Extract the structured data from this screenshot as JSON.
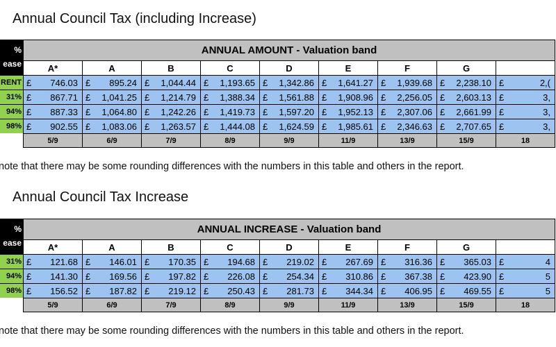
{
  "tables": [
    {
      "title": "Annual Council Tax (including Increase)",
      "header_left": [
        "%",
        "ease"
      ],
      "band_header": "ANNUAL AMOUNT - Valuation band",
      "bands": [
        "A*",
        "A",
        "B",
        "C",
        "D",
        "E",
        "F",
        "G"
      ],
      "currency": "£",
      "rows": [
        {
          "label": "RENT",
          "values": [
            "746.03",
            "895.24",
            "1,044.44",
            "1,193.65",
            "1,342.86",
            "1,641.27",
            "1,939.68",
            "2,238.10",
            "2,("
          ]
        },
        {
          "label": "31%",
          "values": [
            "867.71",
            "1,041.25",
            "1,214.79",
            "1,388.34",
            "1,561.88",
            "1,908.96",
            "2,256.05",
            "2,603.13",
            "3,"
          ]
        },
        {
          "label": "94%",
          "values": [
            "887.33",
            "1,064.80",
            "1,242.26",
            "1,419.73",
            "1,597.20",
            "1,952.13",
            "2,307.06",
            "2,661.99",
            "3,"
          ]
        },
        {
          "label": "98%",
          "values": [
            "902.55",
            "1,083.06",
            "1,263.57",
            "1,444.08",
            "1,624.59",
            "1,985.61",
            "2,346.63",
            "2,707.65",
            "3,"
          ]
        }
      ],
      "ratios": [
        "5/9",
        "6/9",
        "7/9",
        "8/9",
        "9/9",
        "11/9",
        "13/9",
        "15/9",
        "18"
      ],
      "note": "note that there may be some rounding differences with the numbers in this table and others in the report."
    },
    {
      "title": "Annual Council Tax Increase",
      "header_left": [
        "%",
        "ease"
      ],
      "band_header": "ANNUAL INCREASE - Valuation band",
      "bands": [
        "A*",
        "A",
        "B",
        "C",
        "D",
        "E",
        "F",
        "G"
      ],
      "currency": "£",
      "rows": [
        {
          "label": "31%",
          "values": [
            "121.68",
            "146.01",
            "170.35",
            "194.68",
            "219.02",
            "267.69",
            "316.36",
            "365.03",
            "4"
          ]
        },
        {
          "label": "94%",
          "values": [
            "141.30",
            "169.56",
            "197.82",
            "226.08",
            "254.34",
            "310.86",
            "367.38",
            "423.90",
            "5"
          ]
        },
        {
          "label": "98%",
          "values": [
            "156.52",
            "187.82",
            "219.12",
            "250.43",
            "281.73",
            "344.34",
            "406.95",
            "469.55",
            "5"
          ]
        }
      ],
      "ratios": [
        "5/9",
        "6/9",
        "7/9",
        "8/9",
        "9/9",
        "11/9",
        "13/9",
        "15/9",
        "18"
      ],
      "note": "note that there may be some rounding differences with the numbers in this table and others in the report."
    }
  ]
}
